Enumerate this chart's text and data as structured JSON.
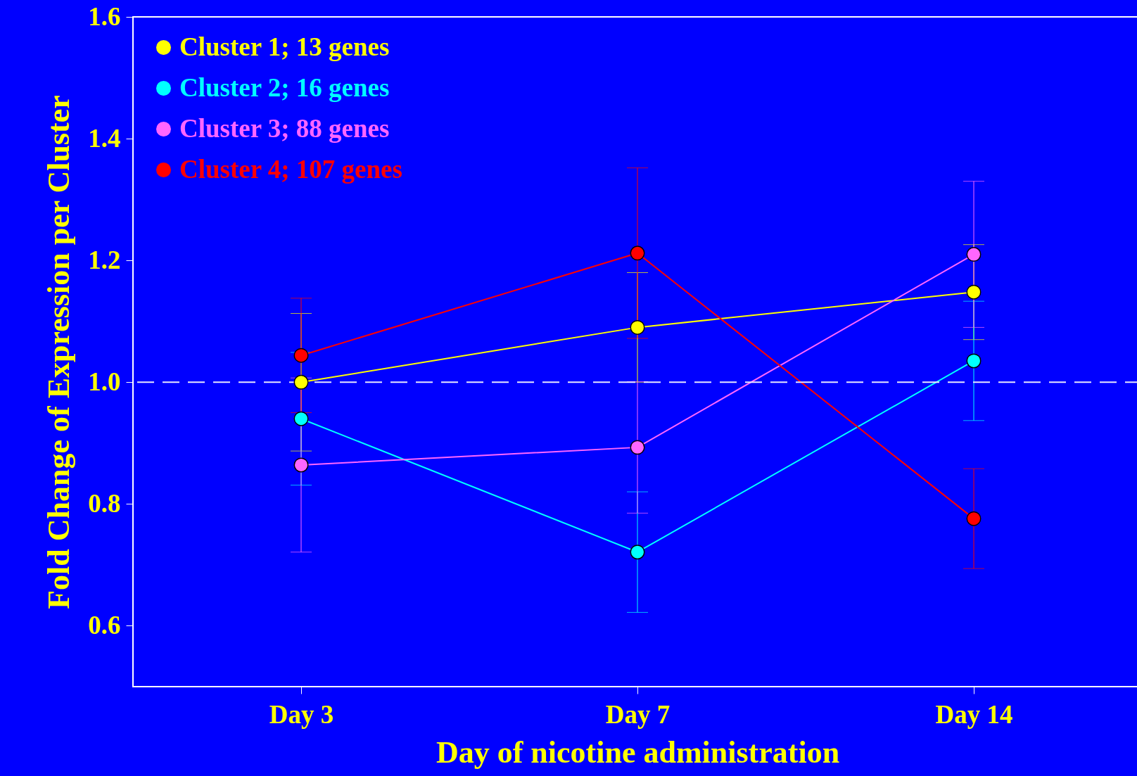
{
  "chart_data": {
    "type": "line",
    "xlabel": "Day of nicotine administration",
    "ylabel": "Fold Change of Expression per Cluster",
    "categories": [
      "Day 3",
      "Day 7",
      "Day 14"
    ],
    "series": [
      {
        "name": "Cluster 1;  13 genes",
        "color": "#ffff00",
        "values": [
          1.0,
          1.09,
          1.148
        ],
        "errors": [
          0.113,
          0.09,
          0.078
        ]
      },
      {
        "name": "Cluster 2;  16 genes",
        "color": "#00ffff",
        "values": [
          0.94,
          0.721,
          1.035
        ],
        "errors": [
          0.109,
          0.099,
          0.098
        ]
      },
      {
        "name": "Cluster 3;  88 genes",
        "color": "#ff66ff",
        "values": [
          0.864,
          0.893,
          1.21
        ],
        "errors": [
          0.143,
          0.108,
          0.12
        ]
      },
      {
        "name": "Cluster 4;  107 genes",
        "color": "#ff0000",
        "values": [
          1.044,
          1.212,
          0.776
        ],
        "errors": [
          0.094,
          0.14,
          0.082
        ]
      }
    ],
    "ylim": [
      0.5,
      1.6
    ],
    "yticks": [
      0.6,
      0.8,
      {
        "value": 1,
        "label": "1.0"
      },
      1.2,
      1.4,
      1.6
    ],
    "ref_lines": [
      {
        "axis": "y",
        "value": 1,
        "color": "#e8e8ff",
        "line_style": "dashed"
      }
    ],
    "marker": "circle",
    "legend": "top left",
    "grid": false
  }
}
